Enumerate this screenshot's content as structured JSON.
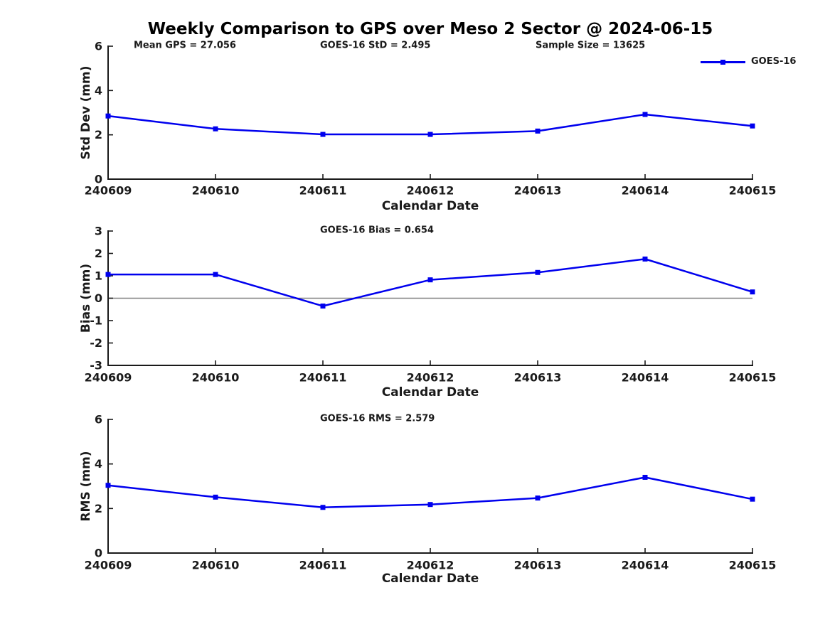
{
  "figure": {
    "title": "Weekly Comparison to GPS over Meso 2 Sector @ 2024-06-15",
    "legend": {
      "label": "GOES-16",
      "position": "top-right"
    },
    "series_color": "#0000ee",
    "zero_line_color": "#808080",
    "text_color": "#1a1a1a"
  },
  "chart_data": [
    {
      "type": "line",
      "name": "std-dev",
      "annotations": [
        "Mean GPS = 27.056",
        "GOES-16 StD = 2.495",
        "Sample Size = 13625"
      ],
      "categories": [
        "240609",
        "240610",
        "240611",
        "240612",
        "240613",
        "240614",
        "240615"
      ],
      "series": [
        {
          "name": "GOES-16",
          "color": "#0000ee",
          "marker": "square",
          "values": [
            2.85,
            2.27,
            2.02,
            2.02,
            2.17,
            2.92,
            2.4
          ]
        }
      ],
      "xlabel": "Calendar Date",
      "ylabel": "Std Dev (mm)",
      "ylim": [
        0,
        6
      ],
      "yticks": [
        0,
        2,
        4,
        6
      ],
      "grid": false,
      "zero_line": false,
      "legend_position": "top-right"
    },
    {
      "type": "line",
      "name": "bias",
      "annotations": [
        "GOES-16 Bias  = 0.654"
      ],
      "categories": [
        "240609",
        "240610",
        "240611",
        "240612",
        "240613",
        "240614",
        "240615"
      ],
      "series": [
        {
          "name": "GOES-16",
          "color": "#0000ee",
          "marker": "square",
          "values": [
            1.06,
            1.06,
            -0.35,
            0.82,
            1.15,
            1.75,
            0.28
          ]
        }
      ],
      "xlabel": "Calendar Date",
      "ylabel": "Bias (mm)",
      "ylim": [
        -3,
        3
      ],
      "yticks": [
        -3,
        -2,
        -1,
        0,
        1,
        2,
        3
      ],
      "grid": false,
      "zero_line": true,
      "legend_position": "none"
    },
    {
      "type": "line",
      "name": "rms",
      "annotations": [
        "GOES-16 RMS = 2.579"
      ],
      "categories": [
        "240609",
        "240610",
        "240611",
        "240612",
        "240613",
        "240614",
        "240615"
      ],
      "series": [
        {
          "name": "GOES-16",
          "color": "#0000ee",
          "marker": "square",
          "values": [
            3.04,
            2.51,
            2.05,
            2.18,
            2.47,
            3.4,
            2.42
          ]
        }
      ],
      "xlabel": "Calendar Date",
      "ylabel": "RMS (mm)",
      "ylim": [
        0,
        6
      ],
      "yticks": [
        0,
        2,
        4,
        6
      ],
      "grid": false,
      "zero_line": false,
      "legend_position": "none"
    }
  ]
}
